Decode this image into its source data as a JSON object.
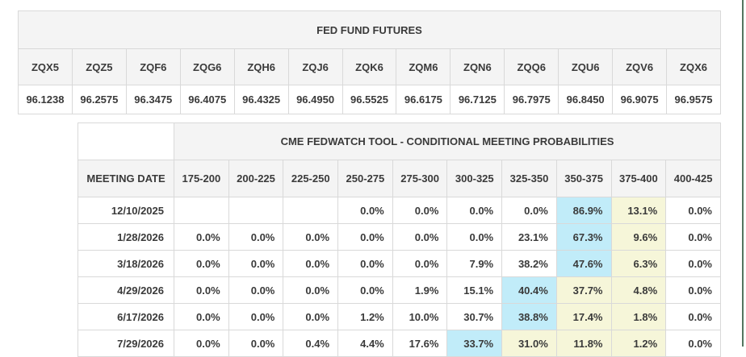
{
  "page": {
    "background": "#ffffff",
    "edge_line_color": "#54755f"
  },
  "futures_table": {
    "title": "FED FUND FUTURES",
    "columns": [
      "ZQX5",
      "ZQZ5",
      "ZQF6",
      "ZQG6",
      "ZQH6",
      "ZQJ6",
      "ZQK6",
      "ZQM6",
      "ZQN6",
      "ZQQ6",
      "ZQU6",
      "ZQV6",
      "ZQX6"
    ],
    "prices": [
      "96.1238",
      "96.2575",
      "96.3475",
      "96.4075",
      "96.4325",
      "96.4950",
      "96.5525",
      "96.6175",
      "96.7125",
      "96.7975",
      "96.8450",
      "96.9075",
      "96.9575"
    ]
  },
  "fedwatch_table": {
    "title": "CME FEDWATCH TOOL - CONDITIONAL MEETING PROBABILITIES",
    "date_column_header": "MEETING DATE",
    "rate_columns": [
      "175-200",
      "200-225",
      "225-250",
      "250-275",
      "275-300",
      "300-325",
      "325-350",
      "350-375",
      "375-400",
      "400-425"
    ],
    "highlight_colors": {
      "blue": "#c1ecf9",
      "yellow": "#f6f6d9"
    },
    "rows": [
      {
        "date": "12/10/2025",
        "values": [
          "",
          "",
          "",
          "0.0%",
          "0.0%",
          "0.0%",
          "0.0%",
          "86.9%",
          "13.1%",
          "0.0%"
        ],
        "highlights": [
          "",
          "",
          "",
          "",
          "",
          "",
          "",
          "blue",
          "yellow",
          ""
        ]
      },
      {
        "date": "1/28/2026",
        "values": [
          "0.0%",
          "0.0%",
          "0.0%",
          "0.0%",
          "0.0%",
          "0.0%",
          "23.1%",
          "67.3%",
          "9.6%",
          "0.0%"
        ],
        "highlights": [
          "",
          "",
          "",
          "",
          "",
          "",
          "",
          "blue",
          "yellow",
          ""
        ]
      },
      {
        "date": "3/18/2026",
        "values": [
          "0.0%",
          "0.0%",
          "0.0%",
          "0.0%",
          "0.0%",
          "7.9%",
          "38.2%",
          "47.6%",
          "6.3%",
          "0.0%"
        ],
        "highlights": [
          "",
          "",
          "",
          "",
          "",
          "",
          "",
          "blue",
          "yellow",
          ""
        ]
      },
      {
        "date": "4/29/2026",
        "values": [
          "0.0%",
          "0.0%",
          "0.0%",
          "0.0%",
          "1.9%",
          "15.1%",
          "40.4%",
          "37.7%",
          "4.8%",
          "0.0%"
        ],
        "highlights": [
          "",
          "",
          "",
          "",
          "",
          "",
          "blue",
          "yellow",
          "yellow",
          ""
        ]
      },
      {
        "date": "6/17/2026",
        "values": [
          "0.0%",
          "0.0%",
          "0.0%",
          "1.2%",
          "10.0%",
          "30.7%",
          "38.8%",
          "17.4%",
          "1.8%",
          "0.0%"
        ],
        "highlights": [
          "",
          "",
          "",
          "",
          "",
          "",
          "blue",
          "yellow",
          "yellow",
          ""
        ]
      },
      {
        "date": "7/29/2026",
        "values": [
          "0.0%",
          "0.0%",
          "0.4%",
          "4.4%",
          "17.6%",
          "33.7%",
          "31.0%",
          "11.8%",
          "1.2%",
          "0.0%"
        ],
        "highlights": [
          "",
          "",
          "",
          "",
          "",
          "blue",
          "yellow",
          "yellow",
          "yellow",
          ""
        ]
      }
    ]
  }
}
